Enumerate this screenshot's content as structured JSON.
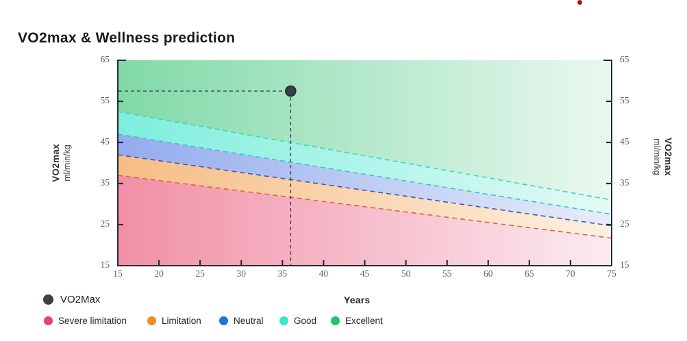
{
  "page": {
    "title": "VO2max & Wellness prediction"
  },
  "decoration": {
    "top_dot_color": "#9e1b1b"
  },
  "axes": {
    "x_label": "Years",
    "y_label_title": "VO2max",
    "y_label_units": "ml/min/kg"
  },
  "legend": {
    "point": {
      "label": "VO2Max",
      "color": "#3a4145"
    },
    "items": [
      {
        "label": "Severe limitation",
        "color": "#e8426b"
      },
      {
        "label": "Limitation",
        "color": "#f08a28"
      },
      {
        "label": "Neutral",
        "color": "#2470e8"
      },
      {
        "label": "Good",
        "color": "#38e8c8"
      },
      {
        "label": "Excellent",
        "color": "#1ec868"
      }
    ]
  },
  "chart_data": {
    "type": "area",
    "title": "VO2max & Wellness prediction",
    "xlabel": "Years",
    "ylabel": "VO2max ml/min/kg",
    "xlim": [
      15,
      75
    ],
    "ylim": [
      15,
      65
    ],
    "x_ticks": [
      15,
      20,
      25,
      30,
      35,
      40,
      45,
      50,
      55,
      60,
      65,
      70,
      75
    ],
    "y_ticks": [
      65,
      55,
      45,
      35,
      25,
      15
    ],
    "grid": false,
    "legend_position": "bottom-left",
    "bands": [
      {
        "name": "Severe limitation",
        "upper": {
          "x": [
            15,
            75
          ],
          "y": [
            37,
            21.7
          ]
        },
        "fill": "#f18fa7",
        "fill_fade": "#fcebf0",
        "boundary_color": "#e06048"
      },
      {
        "name": "Limitation",
        "upper": {
          "x": [
            15,
            75
          ],
          "y": [
            42,
            24.7
          ]
        },
        "fill": "#f5bd85",
        "fill_fade": "#fdf1e1",
        "boundary_color": "#4b55a5"
      },
      {
        "name": "Neutral",
        "upper": {
          "x": [
            15,
            75
          ],
          "y": [
            47,
            27.5
          ]
        },
        "fill": "#93abee",
        "fill_fade": "#e8edfa",
        "boundary_color": "#3cc0ce"
      },
      {
        "name": "Good",
        "upper": {
          "x": [
            15,
            75
          ],
          "y": [
            52.5,
            31
          ]
        },
        "fill": "#7eeedd",
        "fill_fade": "#e4faf5",
        "boundary_color": "#38d8c4"
      },
      {
        "name": "Excellent",
        "upper": {
          "x": [
            15,
            75
          ],
          "y": [
            65,
            65
          ]
        },
        "fill": "#80d9a7",
        "fill_fade": "#eaf8f0",
        "boundary_color": null
      }
    ],
    "point": {
      "label": "VO2Max",
      "x": 36,
      "y": 57.5,
      "color": "#3a4145",
      "crosshair": true
    }
  }
}
